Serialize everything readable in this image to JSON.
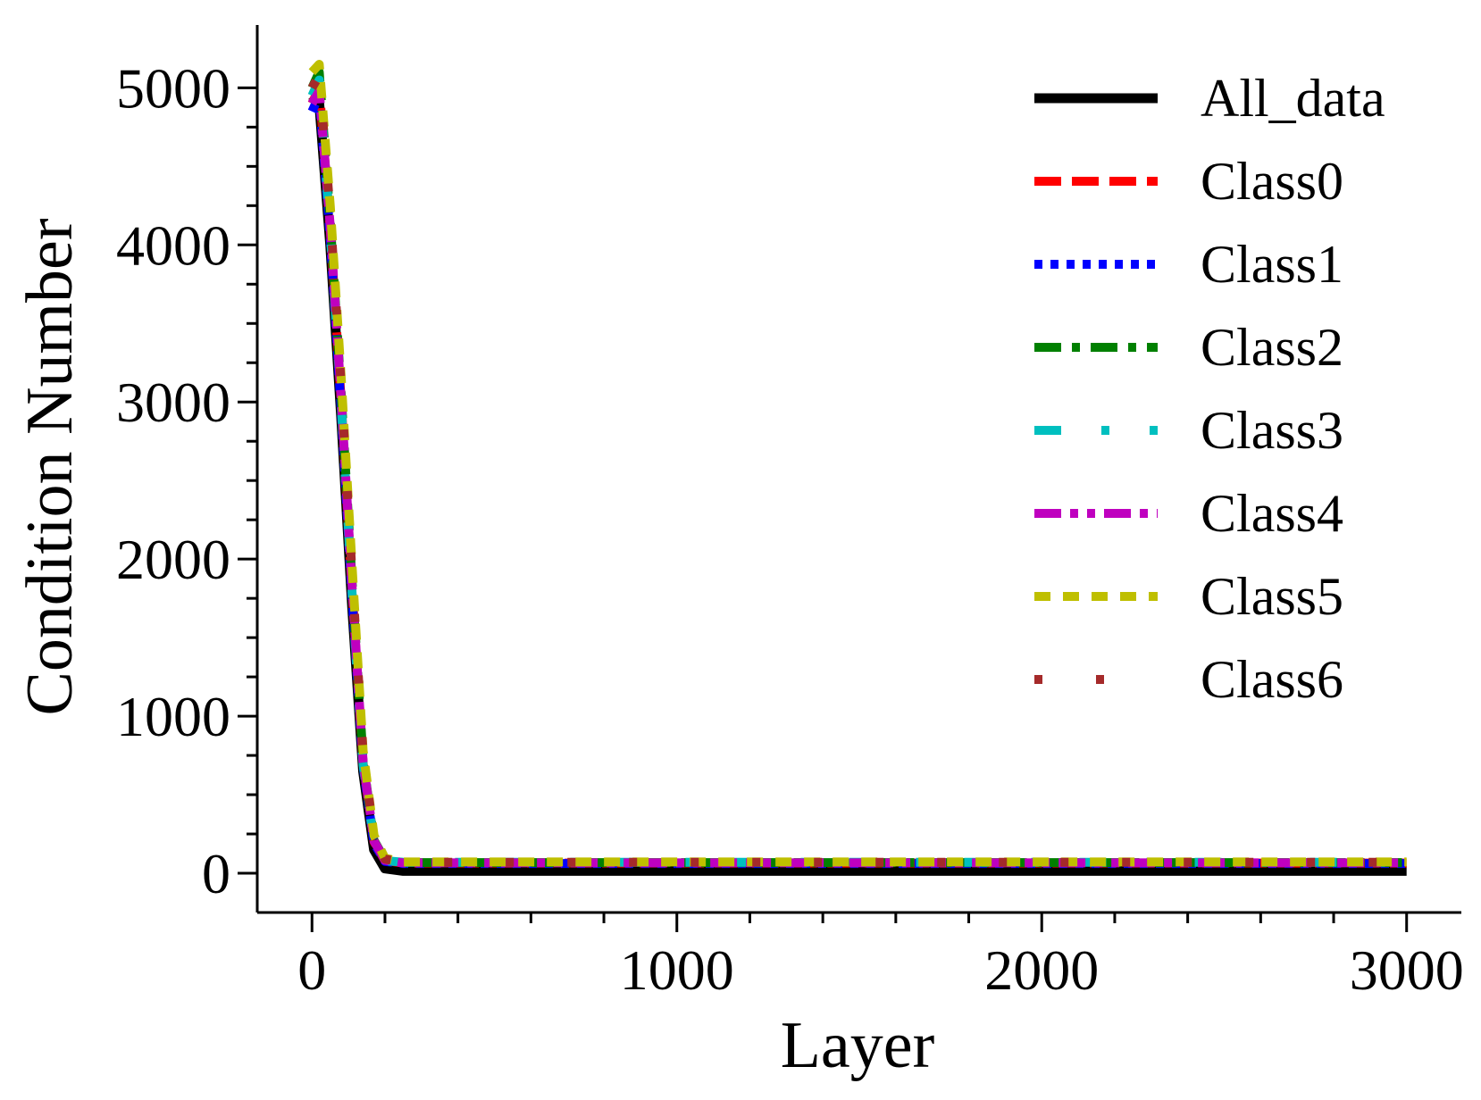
{
  "chart_data": {
    "type": "line",
    "title": "",
    "xlabel": "Layer",
    "ylabel": "Condition Number",
    "xlim": [
      -150,
      3150
    ],
    "ylim": [
      -250,
      5400
    ],
    "xticks": [
      0,
      1000,
      2000,
      3000
    ],
    "yticks": [
      0,
      1000,
      2000,
      3000,
      4000,
      5000
    ],
    "grid": false,
    "legend_position": "top-right",
    "series": [
      {
        "name": "All_data",
        "color": "#000000",
        "style": "solid",
        "x": [
          0,
          20,
          50,
          80,
          110,
          140,
          170,
          200,
          250,
          300,
          500,
          1000,
          1500,
          2000,
          2500,
          3000
        ],
        "y": [
          4950,
          4900,
          4000,
          2900,
          1700,
          650,
          150,
          30,
          15,
          15,
          15,
          15,
          15,
          15,
          15,
          15
        ]
      },
      {
        "name": "Class0",
        "color": "#ff0000",
        "style": "dash",
        "x": [
          0,
          20,
          50,
          80,
          110,
          140,
          170,
          200,
          250,
          300,
          500,
          1000,
          1500,
          2000,
          2500,
          3000
        ],
        "y": [
          4900,
          5000,
          4100,
          3000,
          1800,
          700,
          200,
          80,
          65,
          65,
          65,
          65,
          65,
          65,
          65,
          65
        ]
      },
      {
        "name": "Class1",
        "color": "#0000ff",
        "style": "dot",
        "x": [
          0,
          20,
          50,
          80,
          110,
          140,
          170,
          200,
          250,
          300,
          500,
          1000,
          1500,
          2000,
          2500,
          3000
        ],
        "y": [
          4850,
          4950,
          4050,
          2950,
          1750,
          680,
          190,
          75,
          62,
          62,
          62,
          62,
          62,
          62,
          62,
          62
        ]
      },
      {
        "name": "Class2",
        "color": "#008000",
        "style": "dashdot",
        "x": [
          0,
          20,
          50,
          80,
          110,
          140,
          170,
          200,
          250,
          300,
          500,
          1000,
          1500,
          2000,
          2500,
          3000
        ],
        "y": [
          5000,
          5100,
          4150,
          3050,
          1850,
          720,
          210,
          85,
          68,
          68,
          68,
          68,
          68,
          68,
          68,
          68
        ]
      },
      {
        "name": "Class3",
        "color": "#00bfbf",
        "style": "dashdot-sparse",
        "x": [
          0,
          20,
          50,
          80,
          110,
          140,
          170,
          200,
          250,
          300,
          500,
          1000,
          1500,
          2000,
          2500,
          3000
        ],
        "y": [
          4950,
          5050,
          4080,
          2980,
          1780,
          690,
          200,
          80,
          70,
          70,
          70,
          70,
          70,
          70,
          70,
          70
        ]
      },
      {
        "name": "Class4",
        "color": "#bf00bf",
        "style": "dashdotdot",
        "x": [
          0,
          20,
          50,
          80,
          110,
          140,
          170,
          200,
          250,
          300,
          500,
          1000,
          1500,
          2000,
          2500,
          3000
        ],
        "y": [
          4900,
          4980,
          4120,
          3020,
          1820,
          710,
          205,
          82,
          66,
          66,
          66,
          66,
          66,
          66,
          66,
          66
        ]
      },
      {
        "name": "Class5",
        "color": "#bfbf00",
        "style": "shortdash",
        "x": [
          0,
          20,
          50,
          80,
          110,
          140,
          170,
          200,
          250,
          300,
          500,
          1000,
          1500,
          2000,
          2500,
          3000
        ],
        "y": [
          5100,
          5150,
          4250,
          3150,
          1950,
          780,
          240,
          95,
          72,
          72,
          72,
          72,
          72,
          72,
          72,
          72
        ]
      },
      {
        "name": "Class6",
        "color": "#a52a2a",
        "style": "sparse-dot",
        "x": [
          0,
          20,
          50,
          80,
          110,
          140,
          170,
          200,
          250,
          300,
          500,
          1000,
          1500,
          2000,
          2500,
          3000
        ],
        "y": [
          5000,
          5080,
          4200,
          3100,
          1900,
          760,
          230,
          90,
          70,
          70,
          70,
          70,
          70,
          70,
          70,
          70
        ]
      }
    ]
  }
}
